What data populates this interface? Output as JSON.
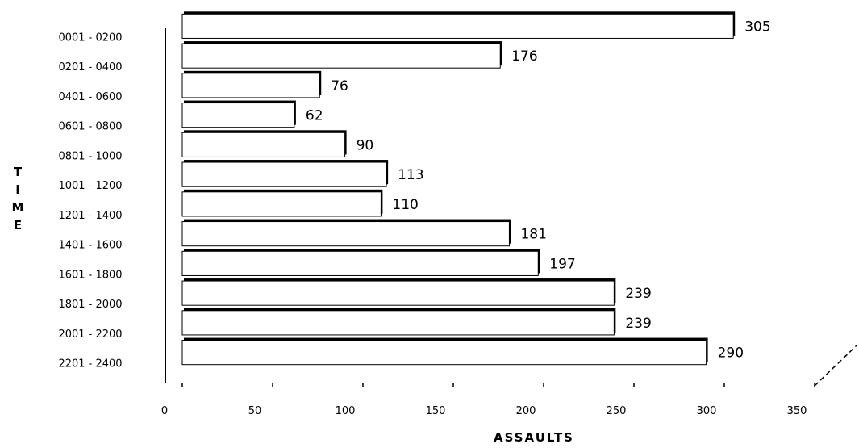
{
  "chart_data": {
    "type": "bar",
    "orientation": "horizontal",
    "categories": [
      "0001 - 0200",
      "0201 - 0400",
      "0401 - 0600",
      "0601 - 0800",
      "0801 - 1000",
      "1001 - 1200",
      "1201 - 1400",
      "1401 - 1600",
      "1601 - 1800",
      "1801 - 2000",
      "2001 - 2200",
      "2201 - 2400"
    ],
    "values": [
      305,
      176,
      76,
      62,
      90,
      113,
      110,
      181,
      197,
      239,
      239,
      290
    ],
    "data_labels": [
      "305",
      "176",
      "76",
      "62",
      "90",
      "113",
      "110",
      "181",
      "197",
      "239",
      "239",
      "290"
    ],
    "xlabel": "ASSAULTS",
    "ylabel": "TIME",
    "xlim": [
      0,
      350
    ],
    "xticks": [
      0,
      50,
      100,
      150,
      200,
      250,
      300,
      350
    ],
    "grid": false,
    "legend": "none",
    "bar_fill": "#ffffff",
    "bar_edge": "#000000"
  }
}
